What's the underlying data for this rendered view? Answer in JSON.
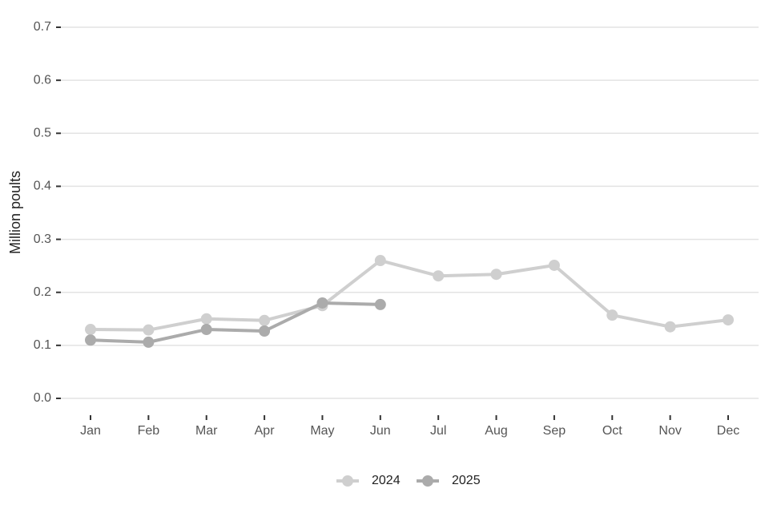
{
  "chart_data": {
    "type": "line",
    "ylabel": "Million poults",
    "categories": [
      "Jan",
      "Feb",
      "Mar",
      "Apr",
      "May",
      "Jun",
      "Jul",
      "Aug",
      "Sep",
      "Oct",
      "Nov",
      "Dec"
    ],
    "series": [
      {
        "name": "2024",
        "color": "#cfcfcf",
        "values": [
          0.13,
          0.129,
          0.15,
          0.147,
          0.175,
          0.26,
          0.231,
          0.234,
          0.251,
          0.157,
          0.135,
          0.148
        ]
      },
      {
        "name": "2025",
        "color": "#ababab",
        "values": [
          0.11,
          0.106,
          0.13,
          0.127,
          0.18,
          0.177,
          null,
          null,
          null,
          null,
          null,
          null
        ]
      }
    ],
    "ylim": [
      0,
      0.7
    ],
    "yticks": [
      {
        "value": 0,
        "label": "0.0"
      },
      0.1,
      0.2,
      0.3,
      0.4,
      0.5,
      0.6,
      0.7
    ],
    "grid": true,
    "legend": "bottom"
  }
}
